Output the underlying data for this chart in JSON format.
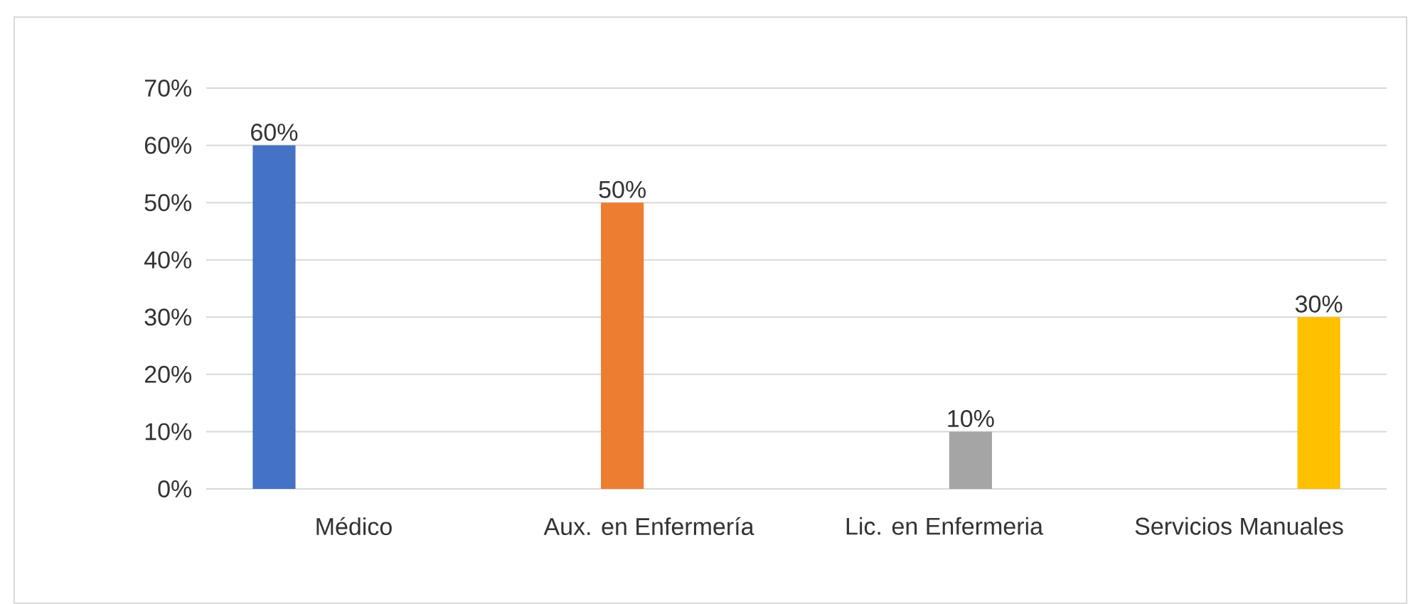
{
  "chart_data": {
    "type": "bar",
    "categories": [
      "Médico",
      "Aux. en Enfermería",
      "Lic. en Enfermeria",
      "Servicios Manuales"
    ],
    "series": [
      {
        "color": "#4472c4",
        "values": [
          60,
          null,
          null,
          null
        ],
        "value_labels": [
          "60%",
          null,
          null,
          null
        ]
      },
      {
        "color": "#ed7d31",
        "values": [
          null,
          50,
          null,
          null
        ],
        "value_labels": [
          null,
          "50%",
          null,
          null
        ]
      },
      {
        "color": "#a5a5a5",
        "values": [
          null,
          null,
          10,
          null
        ],
        "value_labels": [
          null,
          null,
          "10%",
          null
        ]
      },
      {
        "color": "#ffc000",
        "values": [
          null,
          null,
          null,
          30
        ],
        "value_labels": [
          null,
          null,
          null,
          "30%"
        ]
      }
    ],
    "ylim": [
      0,
      70
    ],
    "yticks": [
      {
        "value": 0,
        "label": "0%"
      },
      {
        "value": 10,
        "label": "10%"
      },
      {
        "value": 20,
        "label": "20%"
      },
      {
        "value": 30,
        "label": "30%"
      },
      {
        "value": 40,
        "label": "40%"
      },
      {
        "value": 50,
        "label": "50%"
      },
      {
        "value": 60,
        "label": "60%"
      },
      {
        "value": 70,
        "label": "70%"
      }
    ],
    "grid": "y"
  }
}
